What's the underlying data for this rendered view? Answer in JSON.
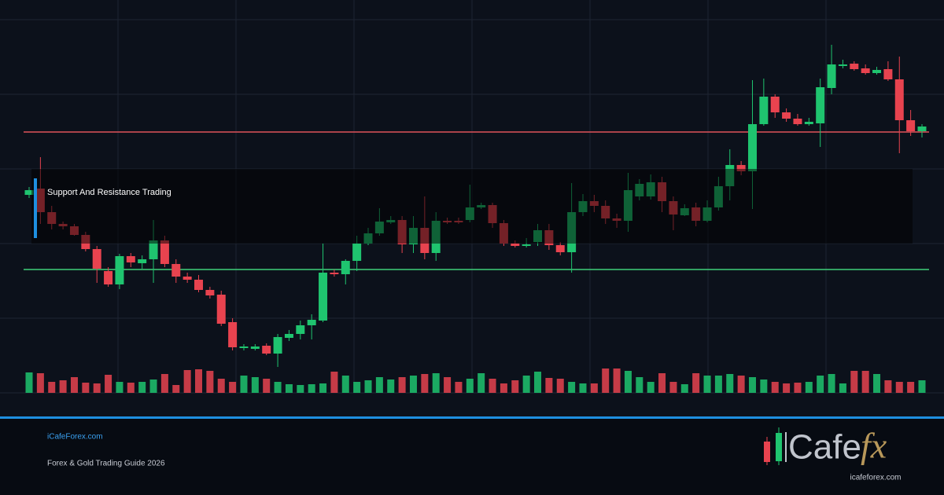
{
  "chart_data": {
    "type": "candlestick",
    "label": "Support And Resistance Trading",
    "open": [
      252,
      260,
      230,
      215,
      212,
      201,
      183,
      155,
      138,
      174,
      165,
      170,
      194,
      164,
      148,
      144,
      131,
      125,
      90,
      57,
      56,
      60,
      50,
      70,
      75,
      86,
      92,
      153,
      151,
      168,
      190,
      203,
      217,
      220,
      189,
      210,
      178,
      219,
      219,
      220,
      236,
      239,
      216,
      190,
      187,
      192,
      207,
      188,
      179,
      230,
      244,
      238,
      222,
      219,
      250,
      250,
      268,
      244,
      226,
      236,
      219,
      236,
      263,
      290,
      282,
      342,
      377,
      357,
      349,
      342,
      343,
      388,
      416,
      419,
      413,
      407,
      412,
      399,
      347,
      333
    ],
    "high": [
      262,
      300,
      238,
      218,
      215,
      205,
      187,
      160,
      177,
      178,
      175,
      220,
      200,
      170,
      153,
      150,
      135,
      130,
      95,
      62,
      62,
      63,
      75,
      80,
      92,
      100,
      190,
      157,
      170,
      200,
      210,
      235,
      225,
      225,
      225,
      250,
      230,
      223,
      223,
      265,
      242,
      242,
      220,
      194,
      197,
      215,
      215,
      192,
      267,
      253,
      252,
      245,
      228,
      280,
      272,
      278,
      275,
      250,
      240,
      242,
      245,
      275,
      310,
      295,
      398,
      400,
      380,
      362,
      355,
      350,
      400,
      443,
      424,
      422,
      418,
      415,
      422,
      428,
      360,
      342
    ],
    "low": [
      248,
      215,
      208,
      208,
      200,
      180,
      140,
      135,
      132,
      160,
      158,
      140,
      160,
      140,
      140,
      128,
      120,
      85,
      54,
      54,
      54,
      48,
      33,
      66,
      68,
      68,
      90,
      148,
      138,
      155,
      188,
      200,
      215,
      178,
      178,
      170,
      168,
      215,
      215,
      217,
      234,
      210,
      187,
      185,
      185,
      187,
      182,
      175,
      153,
      225,
      230,
      215,
      210,
      205,
      245,
      246,
      230,
      207,
      225,
      212,
      217,
      232,
      245,
      277,
      234,
      340,
      350,
      345,
      340,
      340,
      313,
      380,
      413,
      410,
      405,
      405,
      397,
      305,
      327,
      325
    ],
    "close": [
      258,
      230,
      215,
      212,
      201,
      183,
      158,
      138,
      174,
      166,
      170,
      194,
      164,
      148,
      144,
      131,
      124,
      88,
      58,
      59,
      59,
      50,
      71,
      75,
      86,
      93,
      153,
      151,
      168,
      190,
      203,
      218,
      220,
      189,
      210,
      178,
      219,
      217,
      217,
      236,
      239,
      216,
      190,
      187,
      189,
      207,
      188,
      179,
      230,
      244,
      238,
      222,
      219,
      258,
      266,
      268,
      244,
      227,
      235,
      219,
      236,
      263,
      290,
      282,
      342,
      377,
      357,
      349,
      342,
      345,
      389,
      418,
      418,
      412,
      407,
      411,
      399,
      347,
      333,
      339
    ],
    "volume": [
      26,
      25,
      14,
      16,
      20,
      13,
      12,
      23,
      14,
      13,
      14,
      17,
      24,
      10,
      29,
      30,
      28,
      18,
      14,
      22,
      20,
      18,
      14,
      11,
      10,
      11,
      12,
      27,
      22,
      14,
      16,
      20,
      17,
      20,
      22,
      24,
      25,
      20,
      14,
      18,
      25,
      18,
      12,
      16,
      22,
      27,
      19,
      18,
      14,
      12,
      12,
      31,
      31,
      28,
      20,
      14,
      25,
      14,
      11,
      25,
      22,
      22,
      24,
      22,
      20,
      17,
      14,
      12,
      13,
      14,
      22,
      24,
      12,
      28,
      28,
      24,
      16,
      14,
      14,
      16
    ],
    "ylim": [
      0,
      500
    ],
    "vlim": [
      0,
      100
    ],
    "up_color": "#1fc46f",
    "down_color": "#e8434f",
    "levels": [
      {
        "value": 332,
        "color": "#e0525a"
      },
      {
        "value": 157,
        "color": "#3ecf7a"
      }
    ]
  },
  "footer": {
    "site": "iCafeForex.com",
    "subtitle": "Forex & Gold Trading Guide 2026"
  },
  "logo": {
    "word": "Cafe",
    "accent": "fx",
    "url": "icafeforex.com"
  }
}
